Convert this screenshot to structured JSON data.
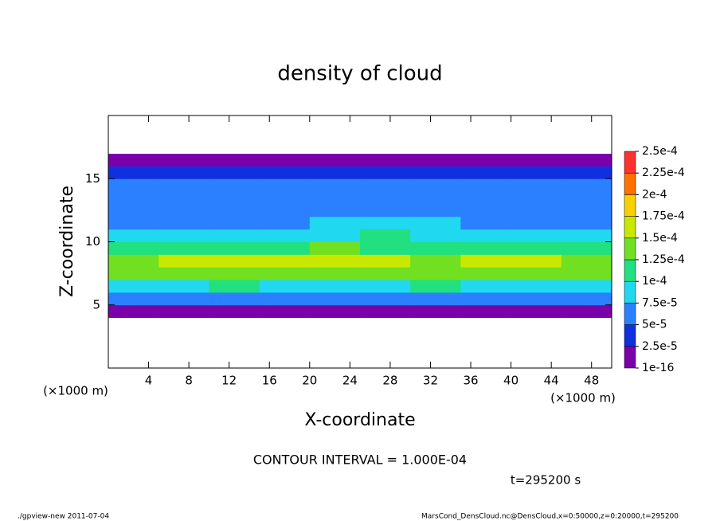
{
  "chart_data": {
    "type": "heatmap",
    "title": "density of cloud",
    "x_label": "X-coordinate",
    "y_label": "Z-coordinate",
    "x_unit_left": "(×1000 m)",
    "x_unit_right": "(×1000 m)",
    "contour_interval": "CONTOUR INTERVAL = 1.000E-04",
    "time": "t=295200 s",
    "footer_left": "./gpview-new   2011-07-04",
    "footer_right": "MarsCond_DensCloud.nc@DensCloud,x=0:50000,z=0:20000,t=295200",
    "xlim": [
      0,
      50
    ],
    "ylim": [
      0,
      20
    ],
    "xticks": [
      4,
      8,
      12,
      16,
      20,
      24,
      28,
      32,
      36,
      40,
      44,
      48
    ],
    "yticks": [
      5,
      10,
      15
    ],
    "x": [
      2.5,
      7.5,
      12.5,
      17.5,
      22.5,
      27.5,
      32.5,
      37.5,
      42.5,
      47.5
    ],
    "y": [
      0.5,
      1.5,
      2.5,
      3.5,
      4.5,
      5.5,
      6.5,
      7.5,
      8.5,
      9.5,
      10.5,
      11.5,
      12.5,
      13.5,
      14.5,
      15.5,
      16.5,
      17.5,
      18.5,
      19.5
    ],
    "values": [
      [
        0,
        0,
        0,
        0,
        0,
        0,
        0,
        0,
        0,
        0
      ],
      [
        0,
        0,
        0,
        0,
        0,
        0,
        0,
        0,
        0,
        0
      ],
      [
        0,
        0,
        0,
        0,
        0,
        0,
        0,
        0,
        0,
        0
      ],
      [
        0,
        0,
        0,
        0,
        0,
        0,
        0,
        0,
        0,
        0
      ],
      [
        2e-05,
        2e-05,
        1.5e-05,
        2e-05,
        2e-05,
        2e-05,
        1.5e-05,
        2e-05,
        2e-05,
        2e-05
      ],
      [
        6e-05,
        6.5e-05,
        6e-05,
        5.5e-05,
        6e-05,
        6e-05,
        6.5e-05,
        6e-05,
        6e-05,
        6.5e-05
      ],
      [
        9e-05,
        9.5e-05,
        0.0001,
        9e-05,
        9.5e-05,
        9e-05,
        0.0001,
        9.5e-05,
        9e-05,
        9.5e-05
      ],
      [
        0.00013,
        0.000135,
        0.00014,
        0.000135,
        0.000145,
        0.00014,
        0.00013,
        0.000135,
        0.00014,
        0.00013
      ],
      [
        0.000145,
        0.000155,
        0.00015,
        0.00015,
        0.000165,
        0.000155,
        0.000145,
        0.00015,
        0.000155,
        0.000145
      ],
      [
        0.000115,
        0.00012,
        0.000115,
        0.00012,
        0.000125,
        0.00012,
        0.000115,
        0.00012,
        0.00012,
        0.000115
      ],
      [
        9e-05,
        8.5e-05,
        9e-05,
        9e-05,
        9.5e-05,
        0.0001,
        9.5e-05,
        9e-05,
        9e-05,
        9e-05
      ],
      [
        7e-05,
        6.5e-05,
        7e-05,
        7e-05,
        7.5e-05,
        8e-05,
        7.5e-05,
        7e-05,
        7e-05,
        7e-05
      ],
      [
        6e-05,
        5.5e-05,
        6e-05,
        6e-05,
        6e-05,
        6.5e-05,
        6e-05,
        6e-05,
        6e-05,
        6e-05
      ],
      [
        5.5e-05,
        5.5e-05,
        5e-05,
        5.5e-05,
        5.5e-05,
        5.5e-05,
        5.5e-05,
        5e-05,
        5.5e-05,
        5.5e-05
      ],
      [
        5e-05,
        5.5e-05,
        5e-05,
        5e-05,
        5e-05,
        5e-05,
        5e-05,
        5e-05,
        5e-05,
        5.5e-05
      ],
      [
        3e-05,
        3e-05,
        3e-05,
        3e-05,
        3e-05,
        3e-05,
        3e-05,
        3e-05,
        3e-05,
        3e-05
      ],
      [
        1e-05,
        1e-05,
        1e-05,
        1e-05,
        1e-05,
        1e-05,
        1e-05,
        1e-05,
        1e-05,
        1e-05
      ],
      [
        0,
        0,
        0,
        0,
        0,
        0,
        0,
        0,
        0,
        0
      ],
      [
        0,
        0,
        0,
        0,
        0,
        0,
        0,
        0,
        0,
        0
      ],
      [
        0,
        0,
        0,
        0,
        0,
        0,
        0,
        0,
        0,
        0
      ]
    ],
    "colorbar": {
      "levels": [
        {
          "value": 1e-16,
          "label": "1e-16"
        },
        {
          "value": 2.5e-05,
          "label": "2.5e-5"
        },
        {
          "value": 5e-05,
          "label": "5e-5"
        },
        {
          "value": 7.5e-05,
          "label": "7.5e-5"
        },
        {
          "value": 0.0001,
          "label": "1e-4"
        },
        {
          "value": 0.000125,
          "label": "1.25e-4"
        },
        {
          "value": 0.00015,
          "label": "1.5e-4"
        },
        {
          "value": 0.000175,
          "label": "1.75e-4"
        },
        {
          "value": 0.0002,
          "label": "2e-4"
        },
        {
          "value": 0.000225,
          "label": "2.25e-4"
        },
        {
          "value": 0.00025,
          "label": "2.5e-4"
        }
      ],
      "colors": [
        "#7a00aa",
        "#1030e0",
        "#2a80ff",
        "#20d8f0",
        "#20e080",
        "#70e020",
        "#c8e800",
        "#f8d000",
        "#ff7000",
        "#ff3030"
      ]
    }
  }
}
